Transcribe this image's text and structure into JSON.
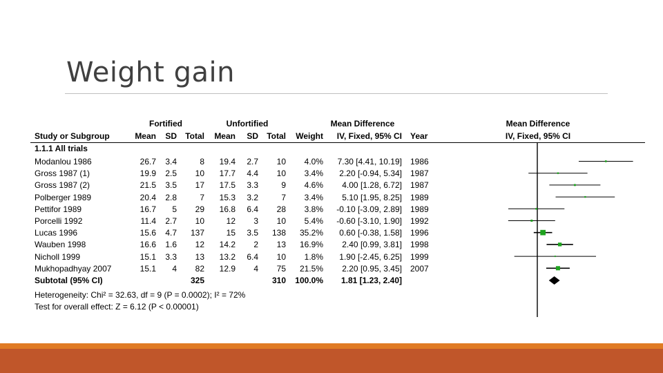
{
  "slide": {
    "title": "Weight gain"
  },
  "colors": {
    "point": "#1fa31f",
    "ci_line": "#000000",
    "footer_orange": "#e07b24",
    "footer_rust": "#c0562a"
  },
  "table": {
    "group_fortified": "Fortified",
    "group_unfortified": "Unfortified",
    "group_md": "Mean Difference",
    "group_md_plot": "Mean Difference",
    "col_study": "Study or Subgroup",
    "col_mean1": "Mean",
    "col_sd1": "SD",
    "col_total1": "Total",
    "col_mean2": "Mean",
    "col_sd2": "SD",
    "col_total2": "Total",
    "col_weight": "Weight",
    "col_ci": "IV, Fixed, 95% CI",
    "col_year": "Year",
    "col_ci_plot": "IV, Fixed, 95% CI",
    "subgroup_label": "1.1.1 All trials",
    "rows": [
      {
        "study": "Modanlou 1986",
        "m1": "26.7",
        "sd1": "3.4",
        "n1": "8",
        "m2": "19.4",
        "sd2": "2.7",
        "n2": "10",
        "weight": "4.0%",
        "ci": "7.30 [4.41, 10.19]",
        "year": "1986"
      },
      {
        "study": "Gross 1987 (1)",
        "m1": "19.9",
        "sd1": "2.5",
        "n1": "10",
        "m2": "17.7",
        "sd2": "4.4",
        "n2": "10",
        "weight": "3.4%",
        "ci": "2.20 [-0.94, 5.34]",
        "year": "1987"
      },
      {
        "study": "Gross 1987 (2)",
        "m1": "21.5",
        "sd1": "3.5",
        "n1": "17",
        "m2": "17.5",
        "sd2": "3.3",
        "n2": "9",
        "weight": "4.6%",
        "ci": "4.00 [1.28, 6.72]",
        "year": "1987"
      },
      {
        "study": "Polberger 1989",
        "m1": "20.4",
        "sd1": "2.8",
        "n1": "7",
        "m2": "15.3",
        "sd2": "3.2",
        "n2": "7",
        "weight": "3.4%",
        "ci": "5.10 [1.95, 8.25]",
        "year": "1989"
      },
      {
        "study": "Pettifor 1989",
        "m1": "16.7",
        "sd1": "5",
        "n1": "29",
        "m2": "16.8",
        "sd2": "6.4",
        "n2": "28",
        "weight": "3.8%",
        "ci": "-0.10 [-3.09, 2.89]",
        "year": "1989"
      },
      {
        "study": "Porcelli 1992",
        "m1": "11.4",
        "sd1": "2.7",
        "n1": "10",
        "m2": "12",
        "sd2": "3",
        "n2": "10",
        "weight": "5.4%",
        "ci": "-0.60 [-3.10, 1.90]",
        "year": "1992"
      },
      {
        "study": "Lucas 1996",
        "m1": "15.6",
        "sd1": "4.7",
        "n1": "137",
        "m2": "15",
        "sd2": "3.5",
        "n2": "138",
        "weight": "35.2%",
        "ci": "0.60 [-0.38, 1.58]",
        "year": "1996"
      },
      {
        "study": "Wauben 1998",
        "m1": "16.6",
        "sd1": "1.6",
        "n1": "12",
        "m2": "14.2",
        "sd2": "2",
        "n2": "13",
        "weight": "16.9%",
        "ci": "2.40 [0.99, 3.81]",
        "year": "1998"
      },
      {
        "study": "Nicholl 1999",
        "m1": "15.1",
        "sd1": "3.3",
        "n1": "13",
        "m2": "13.2",
        "sd2": "6.4",
        "n2": "10",
        "weight": "1.8%",
        "ci": "1.90 [-2.45, 6.25]",
        "year": "1999"
      },
      {
        "study": "Mukhopadhyay 2007",
        "m1": "15.1",
        "sd1": "4",
        "n1": "82",
        "m2": "12.9",
        "sd2": "4",
        "n2": "75",
        "weight": "21.5%",
        "ci": "2.20 [0.95, 3.45]",
        "year": "2007"
      }
    ],
    "subtotal": {
      "label": "Subtotal (95% CI)",
      "n1": "325",
      "n2": "310",
      "weight": "100.0%",
      "ci": "1.81 [1.23, 2.40]"
    },
    "heterogeneity": "Heterogeneity: Chi² = 32.63, df = 9 (P = 0.0002); I² = 72%",
    "overall_effect": "Test for overall effect: Z = 6.12 (P < 0.00001)"
  },
  "chart_data": {
    "type": "forest",
    "null_value": 0,
    "x_range": [
      -3.4,
      10.5
    ],
    "studies": [
      {
        "name": "Modanlou 1986",
        "estimate": 7.3,
        "lower": 4.41,
        "upper": 10.19,
        "weight": 4.0
      },
      {
        "name": "Gross 1987 (1)",
        "estimate": 2.2,
        "lower": -0.94,
        "upper": 5.34,
        "weight": 3.4
      },
      {
        "name": "Gross 1987 (2)",
        "estimate": 4.0,
        "lower": 1.28,
        "upper": 6.72,
        "weight": 4.6
      },
      {
        "name": "Polberger 1989",
        "estimate": 5.1,
        "lower": 1.95,
        "upper": 8.25,
        "weight": 3.4
      },
      {
        "name": "Pettifor 1989",
        "estimate": -0.1,
        "lower": -3.09,
        "upper": 2.89,
        "weight": 3.8
      },
      {
        "name": "Porcelli 1992",
        "estimate": -0.6,
        "lower": -3.1,
        "upper": 1.9,
        "weight": 5.4
      },
      {
        "name": "Lucas 1996",
        "estimate": 0.6,
        "lower": -0.38,
        "upper": 1.58,
        "weight": 35.2
      },
      {
        "name": "Wauben 1998",
        "estimate": 2.4,
        "lower": 0.99,
        "upper": 3.81,
        "weight": 16.9
      },
      {
        "name": "Nicholl 1999",
        "estimate": 1.9,
        "lower": -2.45,
        "upper": 6.25,
        "weight": 1.8
      },
      {
        "name": "Mukhopadhyay 2007",
        "estimate": 2.2,
        "lower": 0.95,
        "upper": 3.45,
        "weight": 21.5
      }
    ],
    "pooled": {
      "estimate": 1.81,
      "lower": 1.23,
      "upper": 2.4
    }
  }
}
